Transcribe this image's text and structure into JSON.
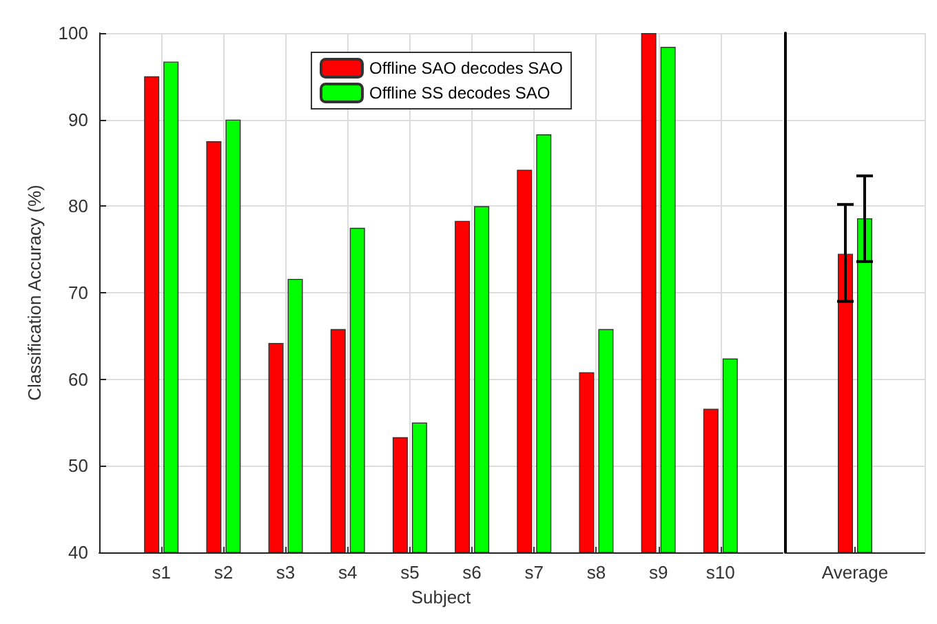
{
  "chart_data": [
    {
      "type": "bar",
      "xlabel": "Subject",
      "ylabel": "Classification Accuracy (%)",
      "categories": [
        null,
        "s1",
        "s2",
        "s3",
        "s4",
        "s5",
        "s6",
        "s7",
        "s8",
        "s9",
        "s10",
        null
      ],
      "series": [
        {
          "name": "Offline SAO decodes SAO",
          "color": "#ff0000",
          "values": [
            null,
            95.0,
            87.5,
            64.2,
            65.8,
            53.3,
            78.3,
            84.2,
            60.8,
            100,
            56.6,
            null
          ]
        },
        {
          "name": "Offline SS decodes SAO",
          "color": "#00ff00",
          "values": [
            null,
            96.7,
            90.0,
            71.6,
            77.5,
            55.0,
            80.0,
            88.3,
            65.8,
            98.4,
            62.4,
            null
          ]
        }
      ],
      "ylim": [
        40,
        100
      ],
      "yticks": [
        40,
        50,
        60,
        70,
        80,
        90,
        100
      ],
      "grid": true,
      "legend": "top"
    },
    {
      "type": "bar",
      "categories": [
        "Average"
      ],
      "series": [
        {
          "color": "#ff0000",
          "values": [
            74.5
          ],
          "errors": [
            [
              69.0,
              80.2
            ]
          ]
        },
        {
          "color": "#00ff00",
          "values": [
            78.6
          ],
          "errors": [
            [
              73.6,
              83.5
            ]
          ]
        }
      ],
      "ylim": [
        40,
        100
      ],
      "yticks": [
        40,
        50,
        60,
        70,
        80,
        90,
        100
      ],
      "grid": true,
      "tick_labels": "x"
    }
  ]
}
